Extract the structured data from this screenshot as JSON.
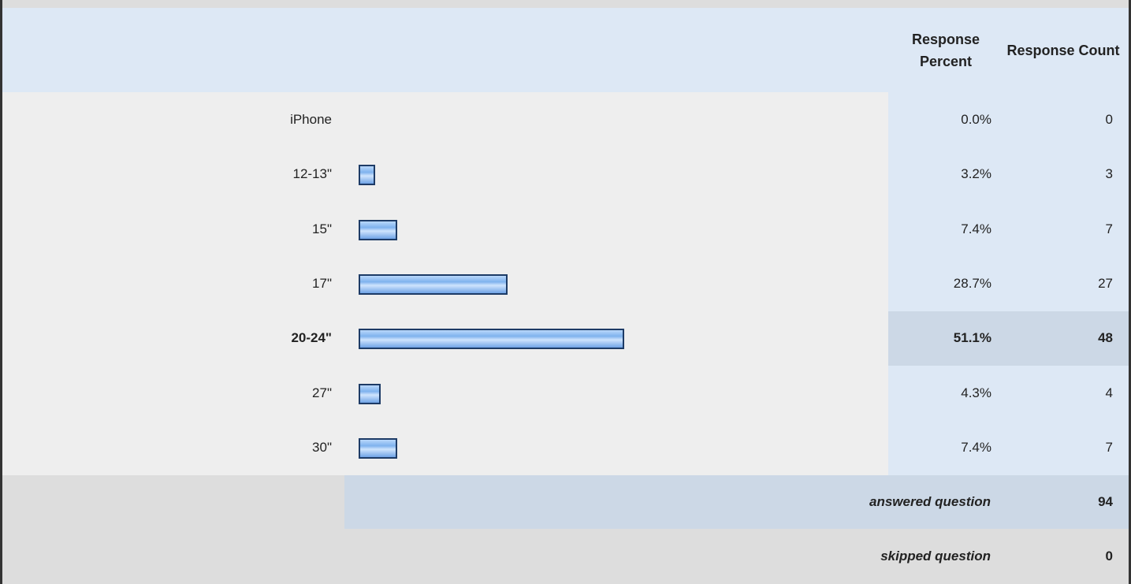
{
  "chart_data": {
    "type": "bar",
    "columns": [
      "Response Percent",
      "Response Count"
    ],
    "categories": [
      "iPhone",
      "12-13\"",
      "15\"",
      "17\"",
      "20-24\"",
      "27\"",
      "30\""
    ],
    "values": [
      0.0,
      3.2,
      7.4,
      28.7,
      51.1,
      4.3,
      7.4
    ],
    "value_labels": [
      "0.0%",
      "3.2%",
      "7.4%",
      "28.7%",
      "51.1%",
      "4.3%",
      "7.4%"
    ],
    "counts": [
      0,
      3,
      7,
      27,
      48,
      4,
      7
    ],
    "answered": {
      "label": "answered question",
      "value": 94
    },
    "skipped": {
      "label": "skipped question",
      "value": 0
    }
  }
}
